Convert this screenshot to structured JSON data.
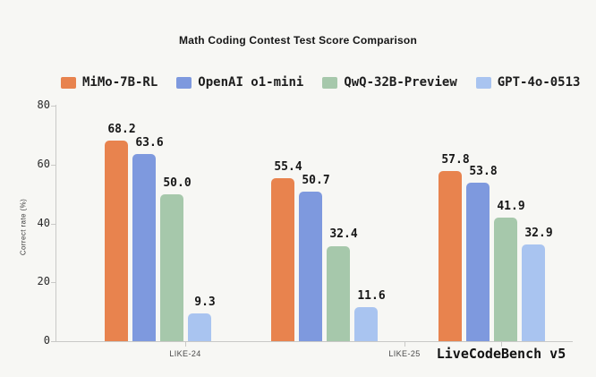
{
  "title": "Math Coding Contest Test Score Comparison",
  "chart_data": {
    "type": "bar",
    "title": "Math Coding Contest Test Score Comparison",
    "categories": [
      "LIKE-24",
      "LIKE-25",
      "LiveCodeBench v5"
    ],
    "series": [
      {
        "name": "MiMo-7B-RL",
        "color": "#E8834E",
        "values": [
          68.2,
          55.4,
          57.8
        ]
      },
      {
        "name": "OpenAI o1-mini",
        "color": "#7E99DE",
        "values": [
          63.6,
          50.7,
          53.8
        ]
      },
      {
        "name": "QwQ-32B-Preview",
        "color": "#A6C8AB",
        "values": [
          50.0,
          32.4,
          41.9
        ]
      },
      {
        "name": "GPT-4o-0513",
        "color": "#A9C4F0",
        "values": [
          9.3,
          11.6,
          32.9
        ]
      }
    ],
    "xlabel": "",
    "ylabel": "Correct rate (%)",
    "ylim": [
      0,
      80
    ],
    "yticks": [
      0,
      20,
      40,
      60,
      80
    ],
    "grid": false,
    "legend_position": "top",
    "value_labels": true,
    "value_label_format": "one-decimal"
  }
}
